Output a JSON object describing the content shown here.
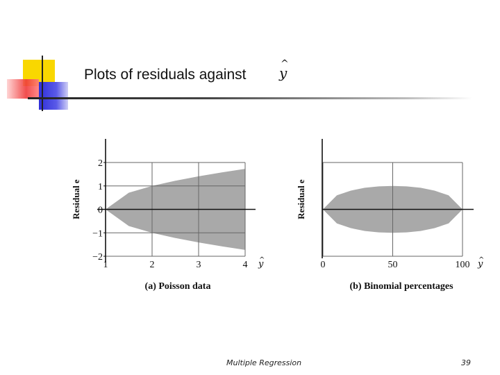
{
  "slide": {
    "title": "Plots of residuals against",
    "title_var": "y",
    "title_hat": "^",
    "footer": "Multiple Regression",
    "page_number": "39"
  },
  "colors": {
    "band": "#a9a9a9",
    "grid": "#666666",
    "axis": "#111111",
    "deco_yellow": "#f9d700",
    "deco_red": "#ef3a3a",
    "deco_blue": "#2f2fd8"
  },
  "chart_data": [
    {
      "type": "area",
      "panel_label": "(a) Poisson data",
      "ylabel": "Residual e",
      "xlabel_var": "y",
      "x_ticks": [
        1,
        2,
        3,
        4
      ],
      "y_ticks": [
        -2,
        -1,
        0,
        1,
        2
      ],
      "xlim": [
        1,
        4
      ],
      "ylim": [
        -2,
        2
      ],
      "grid": true,
      "band_shape": "funnel",
      "band": {
        "x": [
          1,
          1.5,
          2,
          2.5,
          3,
          3.5,
          4
        ],
        "upper": [
          0,
          0.71,
          1.0,
          1.22,
          1.41,
          1.58,
          1.73
        ]
      }
    },
    {
      "type": "area",
      "panel_label": "(b) Binomial percentages",
      "ylabel": "Residual e",
      "xlabel_var": "y",
      "x_ticks": [
        0,
        50,
        100
      ],
      "xlim": [
        0,
        100
      ],
      "grid": true,
      "band_shape": "lens",
      "band": {
        "x": [
          0,
          10,
          20,
          30,
          40,
          50,
          60,
          70,
          80,
          90,
          100
        ],
        "upper": [
          0,
          0.6,
          0.8,
          0.92,
          0.98,
          1.0,
          0.98,
          0.92,
          0.8,
          0.6,
          0
        ]
      }
    }
  ]
}
